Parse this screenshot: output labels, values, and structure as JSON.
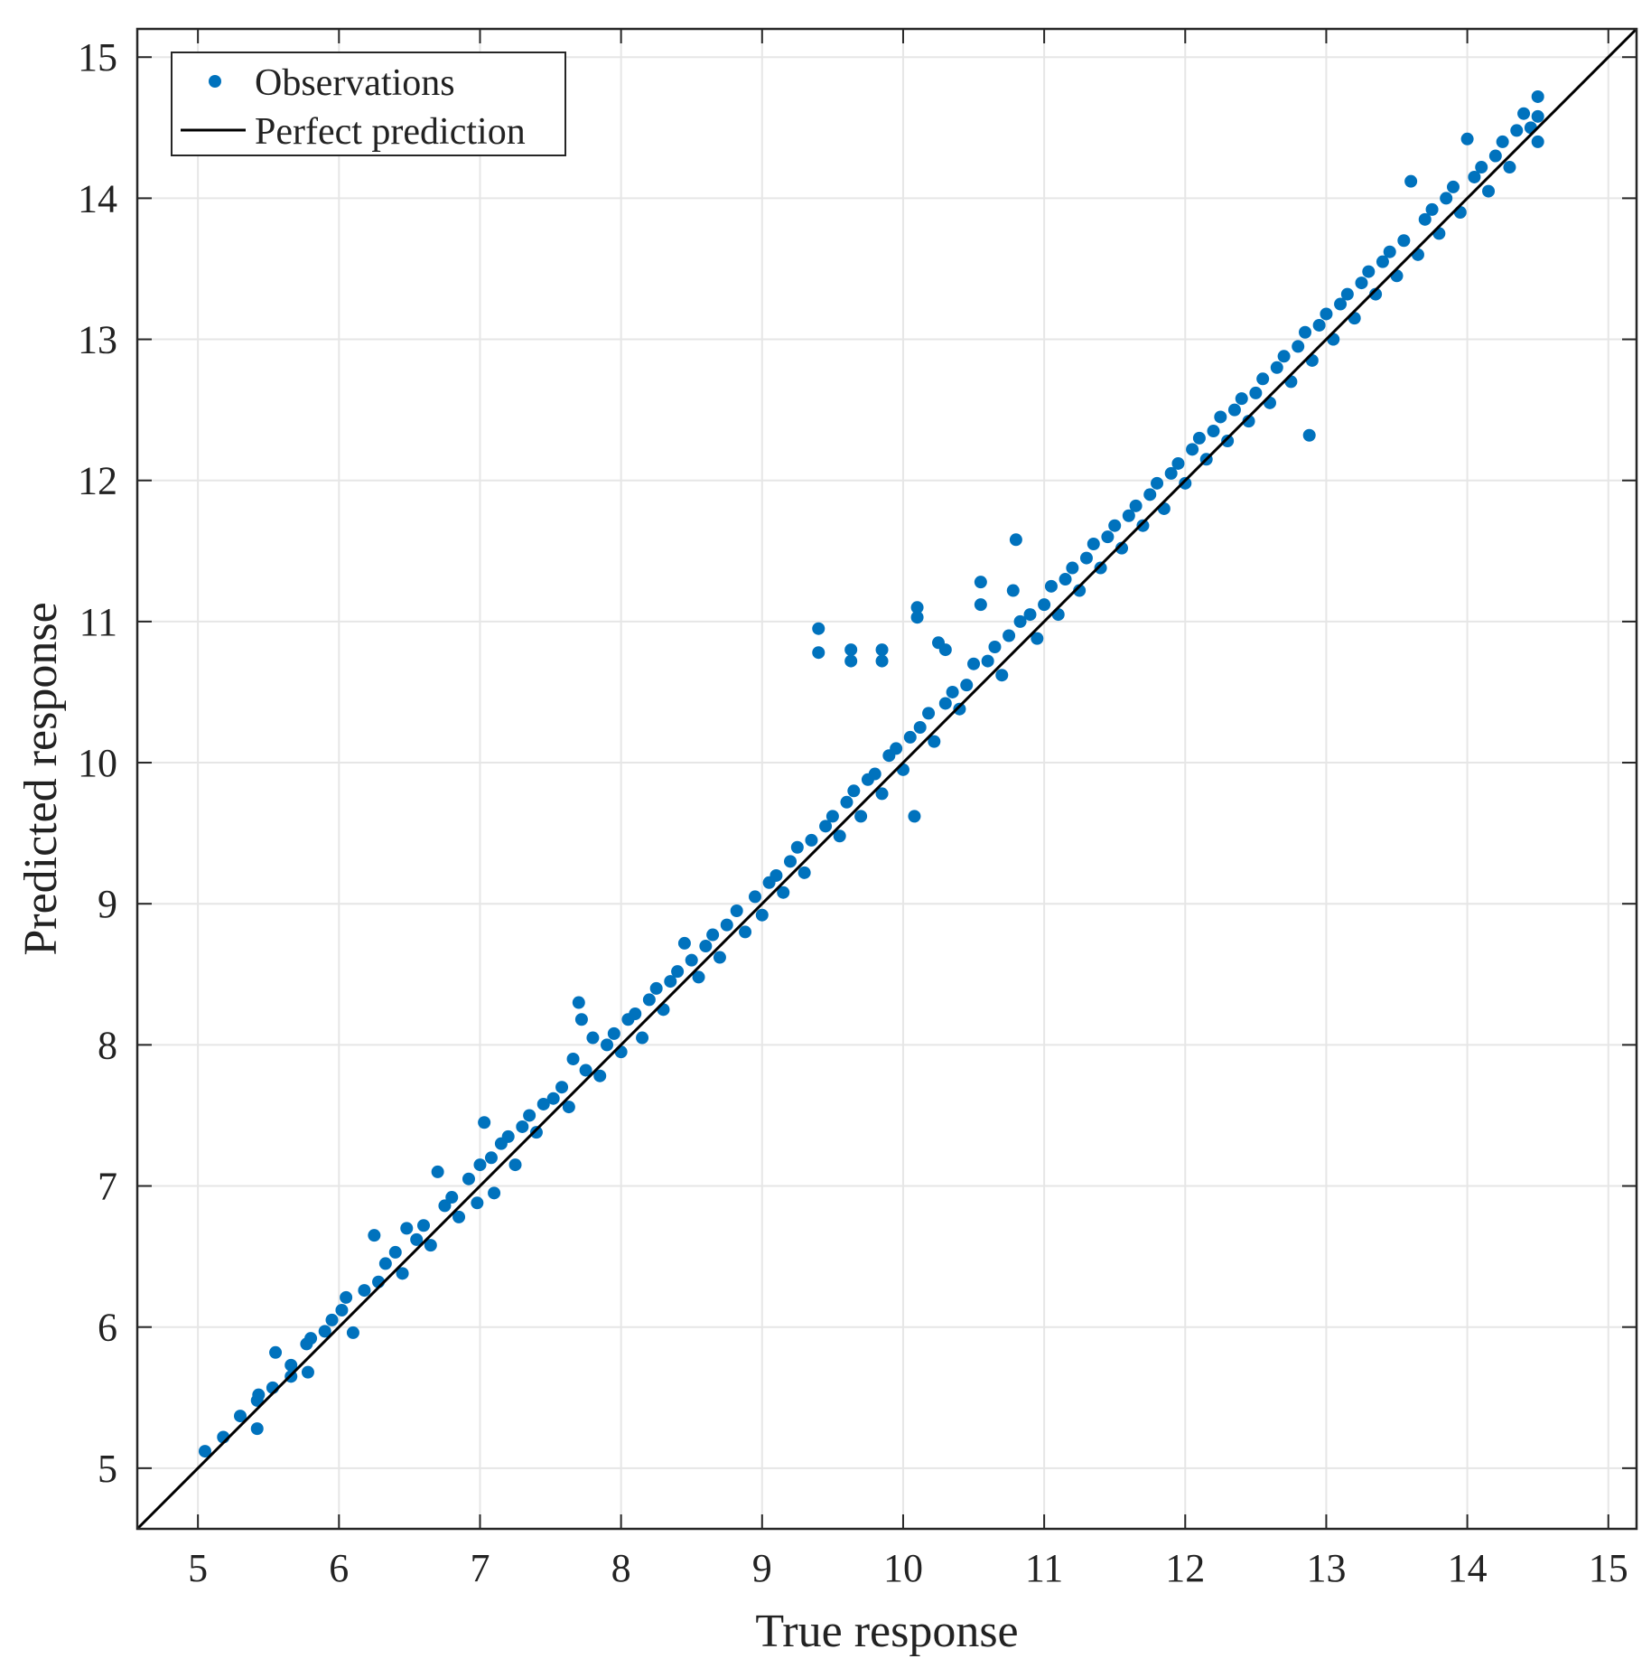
{
  "chart_data": {
    "type": "scatter",
    "title": "",
    "xlabel": "True response",
    "ylabel": "Predicted response",
    "xlim": [
      4.57,
      15.2
    ],
    "ylim": [
      4.57,
      15.2
    ],
    "xticks": [
      "5",
      "6",
      "7",
      "8",
      "9",
      "10",
      "11",
      "12",
      "13",
      "14",
      "15"
    ],
    "yticks": [
      "5",
      "6",
      "7",
      "8",
      "9",
      "10",
      "11",
      "12",
      "13",
      "14",
      "15"
    ],
    "grid": true,
    "legend_position": "top-left",
    "colors": {
      "observations": "#0072BD",
      "perfect_prediction": "#000000",
      "grid": "#e6e6e6",
      "axes": "#262626"
    },
    "series": [
      {
        "name": "Observations",
        "kind": "scatter",
        "points": [
          [
            5.05,
            5.12
          ],
          [
            5.18,
            5.22
          ],
          [
            5.3,
            5.37
          ],
          [
            5.42,
            5.28
          ],
          [
            5.42,
            5.48
          ],
          [
            5.43,
            5.52
          ],
          [
            5.53,
            5.57
          ],
          [
            5.55,
            5.82
          ],
          [
            5.66,
            5.73
          ],
          [
            5.66,
            5.65
          ],
          [
            5.77,
            5.88
          ],
          [
            5.78,
            5.68
          ],
          [
            5.8,
            5.92
          ],
          [
            5.9,
            5.97
          ],
          [
            5.95,
            6.05
          ],
          [
            6.02,
            6.12
          ],
          [
            6.1,
            5.96
          ],
          [
            6.05,
            6.21
          ],
          [
            6.18,
            6.26
          ],
          [
            6.25,
            6.65
          ],
          [
            6.28,
            6.32
          ],
          [
            6.33,
            6.45
          ],
          [
            6.4,
            6.53
          ],
          [
            6.45,
            6.38
          ],
          [
            6.48,
            6.7
          ],
          [
            6.55,
            6.62
          ],
          [
            6.6,
            6.72
          ],
          [
            6.65,
            6.58
          ],
          [
            6.7,
            7.1
          ],
          [
            6.75,
            6.86
          ],
          [
            6.8,
            6.92
          ],
          [
            6.85,
            6.78
          ],
          [
            6.92,
            7.05
          ],
          [
            6.98,
            6.88
          ],
          [
            7.0,
            7.15
          ],
          [
            7.03,
            7.45
          ],
          [
            7.08,
            7.2
          ],
          [
            7.1,
            6.95
          ],
          [
            7.15,
            7.3
          ],
          [
            7.2,
            7.35
          ],
          [
            7.25,
            7.15
          ],
          [
            7.3,
            7.42
          ],
          [
            7.35,
            7.5
          ],
          [
            7.4,
            7.38
          ],
          [
            7.45,
            7.58
          ],
          [
            7.52,
            7.62
          ],
          [
            7.58,
            7.7
          ],
          [
            7.63,
            7.56
          ],
          [
            7.66,
            7.9
          ],
          [
            7.7,
            8.3
          ],
          [
            7.72,
            8.18
          ],
          [
            7.75,
            7.82
          ],
          [
            7.8,
            8.05
          ],
          [
            7.85,
            7.78
          ],
          [
            7.9,
            8.0
          ],
          [
            7.95,
            8.08
          ],
          [
            8.0,
            7.95
          ],
          [
            8.05,
            8.18
          ],
          [
            8.1,
            8.22
          ],
          [
            8.15,
            8.05
          ],
          [
            8.2,
            8.32
          ],
          [
            8.25,
            8.4
          ],
          [
            8.3,
            8.25
          ],
          [
            8.35,
            8.45
          ],
          [
            8.45,
            8.72
          ],
          [
            8.4,
            8.52
          ],
          [
            8.5,
            8.6
          ],
          [
            8.55,
            8.48
          ],
          [
            8.6,
            8.7
          ],
          [
            8.65,
            8.78
          ],
          [
            8.7,
            8.62
          ],
          [
            8.75,
            8.85
          ],
          [
            8.82,
            8.95
          ],
          [
            8.88,
            8.8
          ],
          [
            8.95,
            9.05
          ],
          [
            9.0,
            8.92
          ],
          [
            9.05,
            9.15
          ],
          [
            9.1,
            9.2
          ],
          [
            9.15,
            9.08
          ],
          [
            9.2,
            9.3
          ],
          [
            9.25,
            9.4
          ],
          [
            9.3,
            9.22
          ],
          [
            9.35,
            9.45
          ],
          [
            9.4,
            10.95
          ],
          [
            9.4,
            10.78
          ],
          [
            9.45,
            9.55
          ],
          [
            9.5,
            9.62
          ],
          [
            9.55,
            9.48
          ],
          [
            9.6,
            9.72
          ],
          [
            9.63,
            10.8
          ],
          [
            9.63,
            10.72
          ],
          [
            9.65,
            9.8
          ],
          [
            9.7,
            9.62
          ],
          [
            9.75,
            9.88
          ],
          [
            9.8,
            9.92
          ],
          [
            9.85,
            10.8
          ],
          [
            9.85,
            10.72
          ],
          [
            9.85,
            9.78
          ],
          [
            9.9,
            10.05
          ],
          [
            9.95,
            10.1
          ],
          [
            10.0,
            9.95
          ],
          [
            10.05,
            10.18
          ],
          [
            10.08,
            9.62
          ],
          [
            10.1,
            11.1
          ],
          [
            10.1,
            11.03
          ],
          [
            10.12,
            10.25
          ],
          [
            10.18,
            10.35
          ],
          [
            10.22,
            10.15
          ],
          [
            10.25,
            10.85
          ],
          [
            10.3,
            10.8
          ],
          [
            10.3,
            10.42
          ],
          [
            10.35,
            10.5
          ],
          [
            10.4,
            10.38
          ],
          [
            10.45,
            10.55
          ],
          [
            10.5,
            10.7
          ],
          [
            10.55,
            11.28
          ],
          [
            10.55,
            11.12
          ],
          [
            10.6,
            10.72
          ],
          [
            10.65,
            10.82
          ],
          [
            10.7,
            10.62
          ],
          [
            10.75,
            10.9
          ],
          [
            10.78,
            11.22
          ],
          [
            10.8,
            11.58
          ],
          [
            10.83,
            11.0
          ],
          [
            10.9,
            11.05
          ],
          [
            10.95,
            10.88
          ],
          [
            11.0,
            11.12
          ],
          [
            11.05,
            11.25
          ],
          [
            11.1,
            11.05
          ],
          [
            11.15,
            11.3
          ],
          [
            11.2,
            11.38
          ],
          [
            11.25,
            11.22
          ],
          [
            11.3,
            11.45
          ],
          [
            11.35,
            11.55
          ],
          [
            11.4,
            11.38
          ],
          [
            11.45,
            11.6
          ],
          [
            11.5,
            11.68
          ],
          [
            11.55,
            11.52
          ],
          [
            11.6,
            11.75
          ],
          [
            11.65,
            11.82
          ],
          [
            11.7,
            11.68
          ],
          [
            11.75,
            11.9
          ],
          [
            11.8,
            11.98
          ],
          [
            11.85,
            11.8
          ],
          [
            11.9,
            12.05
          ],
          [
            11.95,
            12.12
          ],
          [
            12.0,
            11.98
          ],
          [
            12.05,
            12.22
          ],
          [
            12.1,
            12.3
          ],
          [
            12.15,
            12.15
          ],
          [
            12.2,
            12.35
          ],
          [
            12.25,
            12.45
          ],
          [
            12.3,
            12.28
          ],
          [
            12.35,
            12.5
          ],
          [
            12.4,
            12.58
          ],
          [
            12.45,
            12.42
          ],
          [
            12.5,
            12.62
          ],
          [
            12.55,
            12.72
          ],
          [
            12.6,
            12.55
          ],
          [
            12.65,
            12.8
          ],
          [
            12.7,
            12.88
          ],
          [
            12.75,
            12.7
          ],
          [
            12.8,
            12.95
          ],
          [
            12.85,
            13.05
          ],
          [
            12.88,
            12.32
          ],
          [
            12.9,
            12.85
          ],
          [
            12.95,
            13.1
          ],
          [
            13.0,
            13.18
          ],
          [
            13.05,
            13.0
          ],
          [
            13.1,
            13.25
          ],
          [
            13.15,
            13.32
          ],
          [
            13.2,
            13.15
          ],
          [
            13.25,
            13.4
          ],
          [
            13.3,
            13.48
          ],
          [
            13.35,
            13.32
          ],
          [
            13.4,
            13.55
          ],
          [
            13.45,
            13.62
          ],
          [
            13.5,
            13.45
          ],
          [
            13.55,
            13.7
          ],
          [
            13.6,
            14.12
          ],
          [
            13.65,
            13.6
          ],
          [
            13.7,
            13.85
          ],
          [
            13.75,
            13.92
          ],
          [
            13.8,
            13.75
          ],
          [
            13.85,
            14.0
          ],
          [
            13.9,
            14.08
          ],
          [
            13.95,
            13.9
          ],
          [
            14.0,
            14.42
          ],
          [
            14.05,
            14.15
          ],
          [
            14.1,
            14.22
          ],
          [
            14.15,
            14.05
          ],
          [
            14.2,
            14.3
          ],
          [
            14.25,
            14.4
          ],
          [
            14.3,
            14.22
          ],
          [
            14.35,
            14.48
          ],
          [
            14.4,
            14.6
          ],
          [
            14.45,
            14.5
          ],
          [
            14.5,
            14.72
          ],
          [
            14.5,
            14.58
          ],
          [
            14.5,
            14.4
          ]
        ]
      },
      {
        "name": "Perfect prediction",
        "kind": "line",
        "x": [
          4.57,
          15.2
        ],
        "y": [
          4.57,
          15.2
        ]
      }
    ]
  }
}
